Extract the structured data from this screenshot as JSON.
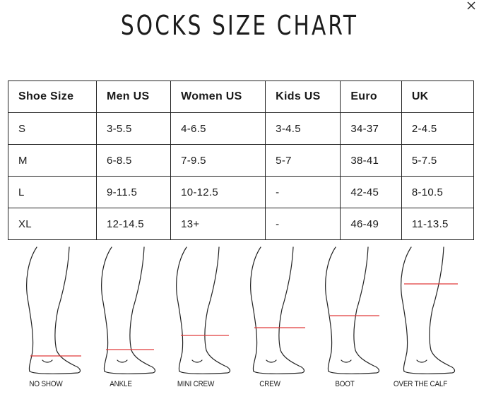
{
  "modal": {
    "title": "SOCKS SIZE CHART",
    "close_icon": "close-icon"
  },
  "table": {
    "headers": [
      "Shoe Size",
      "Men US",
      "Women US",
      "Kids US",
      "Euro",
      "UK"
    ],
    "rows": [
      [
        "S",
        "3-5.5",
        "4-6.5",
        "3-4.5",
        "34-37",
        "2-4.5"
      ],
      [
        "M",
        "6-8.5",
        "7-9.5",
        "5-7",
        "38-41",
        "5-7.5"
      ],
      [
        "L",
        "9-11.5",
        "10-12.5",
        "-",
        "42-45",
        "8-10.5"
      ],
      [
        "XL",
        "12-14.5",
        "13+",
        "-",
        "46-49",
        "11-13.5"
      ]
    ]
  },
  "sock_heights": {
    "accent_color": "#e03a3a",
    "styles": [
      {
        "label": "NO SHOW"
      },
      {
        "label": "ANKLE"
      },
      {
        "label": "MINI CREW"
      },
      {
        "label": "CREW"
      },
      {
        "label": "BOOT"
      },
      {
        "label": "OVER THE CALF"
      }
    ]
  }
}
